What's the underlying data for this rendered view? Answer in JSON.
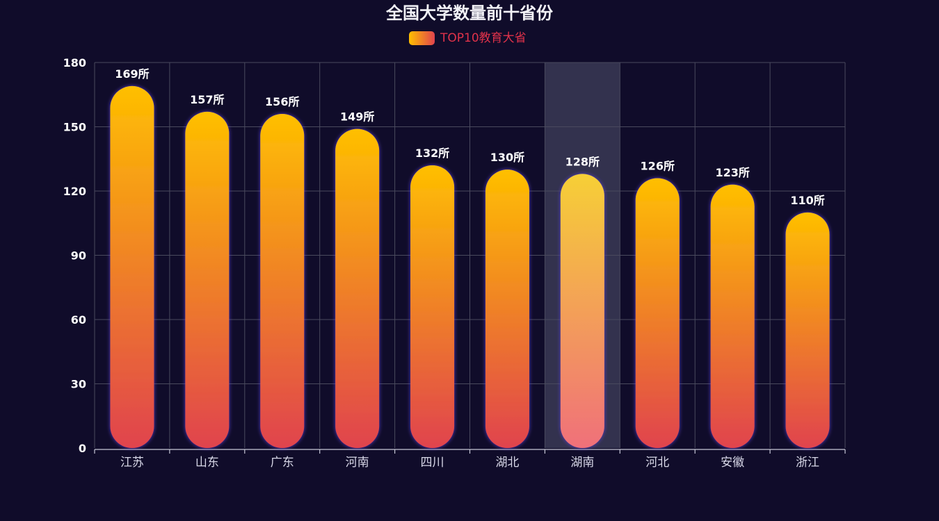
{
  "chart_data": {
    "type": "bar",
    "title": "全国大学数量前十省份",
    "legend": {
      "label": "TOP10教育大省",
      "position": "top-center"
    },
    "categories": [
      "江苏",
      "山东",
      "广东",
      "河南",
      "四川",
      "湖北",
      "湖南",
      "河北",
      "安徽",
      "浙江"
    ],
    "series": [
      {
        "name": "TOP10教育大省",
        "values": [
          169,
          157,
          156,
          149,
          132,
          130,
          128,
          126,
          123,
          110
        ],
        "labels": [
          "169所",
          "157所",
          "156所",
          "149所",
          "132所",
          "130所",
          "128所",
          "126所",
          "123所",
          "110所"
        ]
      }
    ],
    "ylim": [
      0,
      180
    ],
    "yticks": [
      "0",
      "30",
      "60",
      "90",
      "120",
      "150",
      "180"
    ],
    "grid": true,
    "highlighted_category": "湖南",
    "colors": {
      "background": "#100c2a",
      "bar_top": "#ffbf00",
      "bar_bottom": "#e0434e",
      "highlight_top": "#f6cf36",
      "highlight_bottom": "#f0707a",
      "grid": "#4a4a5e",
      "highlight_band": "#3a3a55"
    }
  }
}
